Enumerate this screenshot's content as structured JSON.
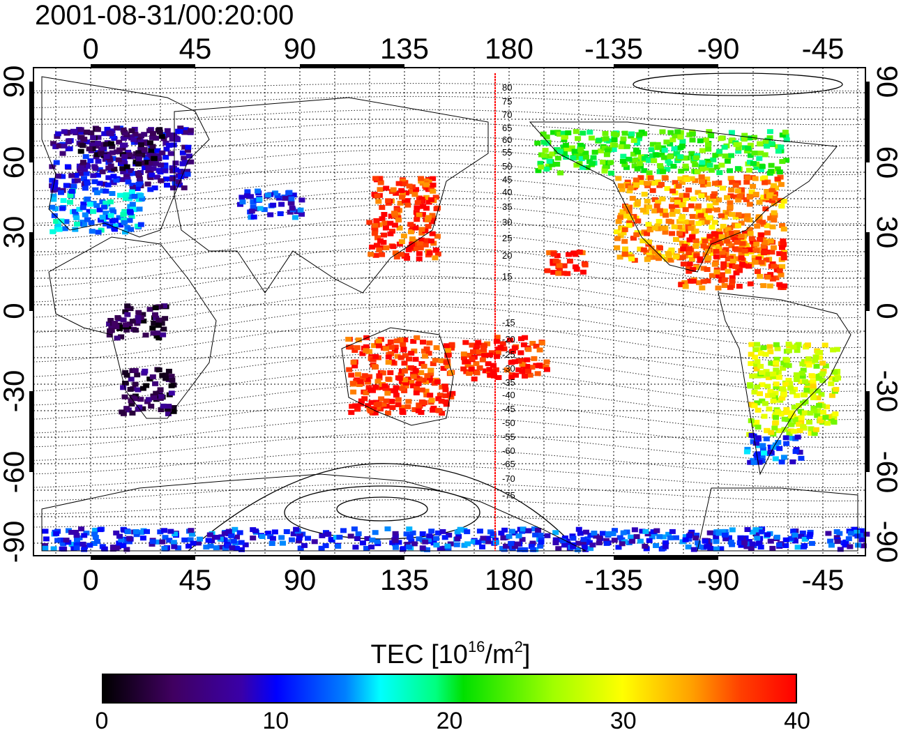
{
  "title": "2001-08-31/00:20:00",
  "map": {
    "top_lon_ticks": [
      "0",
      "45",
      "90",
      "135",
      "180",
      "-135",
      "-90",
      "-45"
    ],
    "bottom_lon_ticks": [
      "0",
      "45",
      "90",
      "135",
      "180",
      "-135",
      "-90",
      "-45"
    ],
    "left_lat_ticks": [
      "90",
      "60",
      "30",
      "0",
      "-30",
      "-60",
      "-90"
    ],
    "right_lat_ticks": [
      "90",
      "60",
      "30",
      "0",
      "-30",
      "-60",
      "-90"
    ],
    "meridian_contour_labels": [
      "80",
      "75",
      "70",
      "65",
      "60",
      "55",
      "50",
      "45",
      "40",
      "35",
      "30",
      "25",
      "20",
      "15",
      "-15",
      "-20",
      "-25",
      "-30",
      "-35",
      "-40",
      "-45",
      "-50",
      "-55",
      "-60",
      "-65",
      "-70",
      "-75"
    ],
    "red_meridian_color": "#ff0000",
    "tec_patches": [
      {
        "region": "europe",
        "tec": 8
      },
      {
        "region": "scandinavia",
        "tec": 4
      },
      {
        "region": "western-europe",
        "tec": 14
      },
      {
        "region": "central-asia",
        "tec": 11
      },
      {
        "region": "japan-china",
        "tec": 38
      },
      {
        "region": "north-america-north",
        "tec": 22
      },
      {
        "region": "north-america-south",
        "tec": 34
      },
      {
        "region": "caribbean",
        "tec": 37
      },
      {
        "region": "hawaii",
        "tec": 39
      },
      {
        "region": "australia",
        "tec": 38
      },
      {
        "region": "south-pacific",
        "tec": 39
      },
      {
        "region": "south-america",
        "tec": 28
      },
      {
        "region": "patagonia",
        "tec": 12
      },
      {
        "region": "southern-africa",
        "tec": 4
      },
      {
        "region": "equatorial-africa",
        "tec": 3
      },
      {
        "region": "antarctica",
        "tec": 11
      }
    ]
  },
  "colorbar": {
    "title_text": "TEC  [10",
    "title_exp": "16",
    "title_unit": "/m",
    "title_unit_exp": "2",
    "title_close": "]",
    "min": 0,
    "max": 40,
    "tick_labels": [
      "0",
      "10",
      "20",
      "30",
      "40"
    ]
  }
}
